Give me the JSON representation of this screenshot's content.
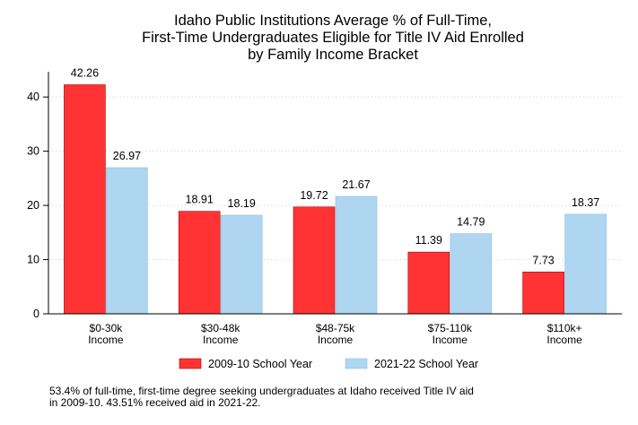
{
  "chart_data": {
    "type": "bar",
    "title": [
      "Idaho Public Institutions Average % of Full-Time,",
      "First-Time Undergraduates Eligible for Title IV Aid Enrolled",
      "by Family Income Bracket"
    ],
    "categories": [
      [
        "$0-30k",
        "Income"
      ],
      [
        "$30-48k",
        "Income"
      ],
      [
        "$48-75k",
        "Income"
      ],
      [
        "$75-110k",
        "Income"
      ],
      [
        "$110k+",
        "Income"
      ]
    ],
    "series": [
      {
        "name": "2009-10 School Year",
        "values": [
          42.26,
          18.91,
          19.72,
          11.39,
          7.73
        ],
        "color": "#ff3333"
      },
      {
        "name": "2021-22 School Year",
        "values": [
          26.97,
          18.19,
          21.67,
          14.79,
          18.37
        ],
        "color": "#aed6f1"
      }
    ],
    "data_labels": {
      "2009-10 School Year": [
        "42.26",
        "18.91",
        "19.72",
        "11.39",
        "7.73"
      ],
      "2021-22 School Year": [
        "26.97",
        "18.19",
        "21.67",
        "14.79",
        "18.37"
      ]
    },
    "ylim": [
      0,
      44
    ],
    "yticks": [
      0,
      10,
      20,
      30,
      40
    ],
    "grid": true,
    "legend_position": "bottom"
  },
  "footnote": [
    "53.4% of full-time, first-time degree seeking undergraduates at Idaho received Title IV aid",
    "in 2009-10. 43.51% received aid in 2021-22."
  ]
}
